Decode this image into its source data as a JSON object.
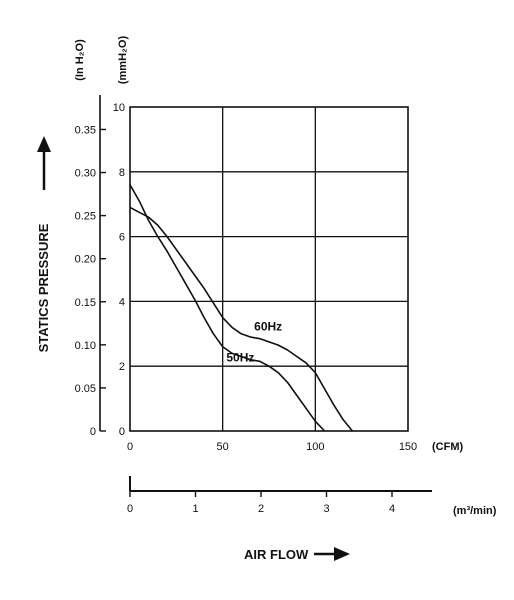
{
  "chart_data": {
    "type": "line",
    "title": "",
    "ylabel": "STATICS PRESSURE",
    "ylabel_left_unit": "(In H₂O)",
    "ylabel_right_unit": "(mmH₂O)",
    "xlabel": "AIR FLOW",
    "x_unit_primary": "(CFM)",
    "x_unit_secondary": "(m³/min)",
    "xlim": [
      0,
      150
    ],
    "ylim": [
      0,
      10
    ],
    "x_ticks": [
      "0",
      "50",
      "100",
      "150"
    ],
    "y_ticks_mm": [
      "0",
      "2",
      "4",
      "6",
      "8",
      "10"
    ],
    "y_ticks_in": [
      "0",
      "0.05",
      "0.10",
      "0.15",
      "0.20",
      "0.25",
      "0.30",
      "0.35"
    ],
    "x2_ticks": [
      "0",
      "1",
      "2",
      "3",
      "4"
    ],
    "grid": true,
    "series": [
      {
        "name": "60Hz",
        "x": [
          0,
          5,
          10,
          15,
          20,
          25,
          30,
          35,
          40,
          45,
          50,
          55,
          60,
          65,
          70,
          75,
          80,
          85,
          90,
          95,
          100,
          105,
          110,
          115,
          120
        ],
        "y": [
          6.9,
          6.75,
          6.6,
          6.35,
          6.0,
          5.6,
          5.2,
          4.8,
          4.4,
          3.95,
          3.5,
          3.2,
          3.0,
          2.9,
          2.85,
          2.75,
          2.65,
          2.5,
          2.3,
          2.1,
          1.8,
          1.3,
          0.8,
          0.35,
          0.0
        ]
      },
      {
        "name": "50Hz",
        "x": [
          0,
          5,
          10,
          15,
          20,
          25,
          30,
          35,
          40,
          45,
          50,
          55,
          60,
          65,
          70,
          75,
          80,
          85,
          90,
          95,
          100,
          105
        ],
        "y": [
          7.6,
          7.1,
          6.5,
          6.0,
          5.55,
          5.05,
          4.55,
          4.05,
          3.5,
          3.0,
          2.6,
          2.4,
          2.3,
          2.2,
          2.15,
          2.0,
          1.8,
          1.5,
          1.1,
          0.7,
          0.3,
          0.0
        ]
      }
    ]
  }
}
